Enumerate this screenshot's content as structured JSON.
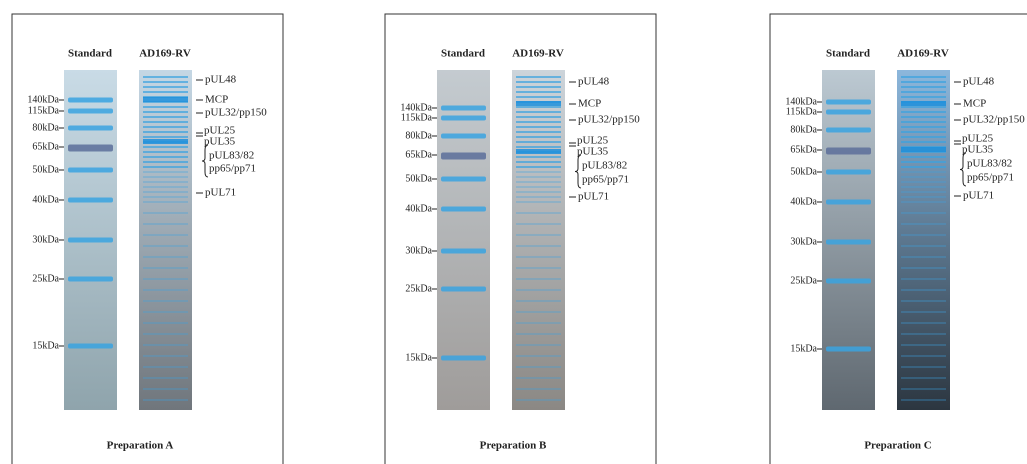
{
  "panels": [
    {
      "lanes": [
        "Standard",
        "AD169-RV"
      ],
      "markers": [
        "140kDa",
        "115kDa",
        "80kDa",
        "65kDa",
        "50kDa",
        "40kDa",
        "30kDa",
        "25kDa",
        "15kDa"
      ],
      "proteins": [
        "pUL48",
        "MCP",
        "pUL32/pp150",
        "pUL25",
        "pUL35",
        "pUL83/82",
        "pp65/pp71",
        "pUL71"
      ],
      "caption": "Preparation A"
    },
    {
      "lanes": [
        "Standard",
        "AD169-RV"
      ],
      "markers": [
        "140kDa",
        "115kDa",
        "80kDa",
        "65kDa",
        "50kDa",
        "40kDa",
        "30kDa",
        "25kDa",
        "15kDa"
      ],
      "proteins": [
        "pUL48",
        "MCP",
        "pUL32/pp150",
        "pUL25",
        "pUL35",
        "pUL83/82",
        "pp65/pp71",
        "pUL71"
      ],
      "caption": "Preparation B"
    },
    {
      "lanes": [
        "Standard",
        "AD169-RV"
      ],
      "markers": [
        "140kDa",
        "115kDa",
        "80kDa",
        "65kDa",
        "50kDa",
        "40kDa",
        "30kDa",
        "25kDa",
        "15kDa"
      ],
      "proteins": [
        "pUL48",
        "MCP",
        "pUL32/pp150",
        "pUL25",
        "pUL35",
        "pUL83/82",
        "pp65/pp71",
        "pUL71"
      ],
      "caption": "Preparation C"
    }
  ]
}
